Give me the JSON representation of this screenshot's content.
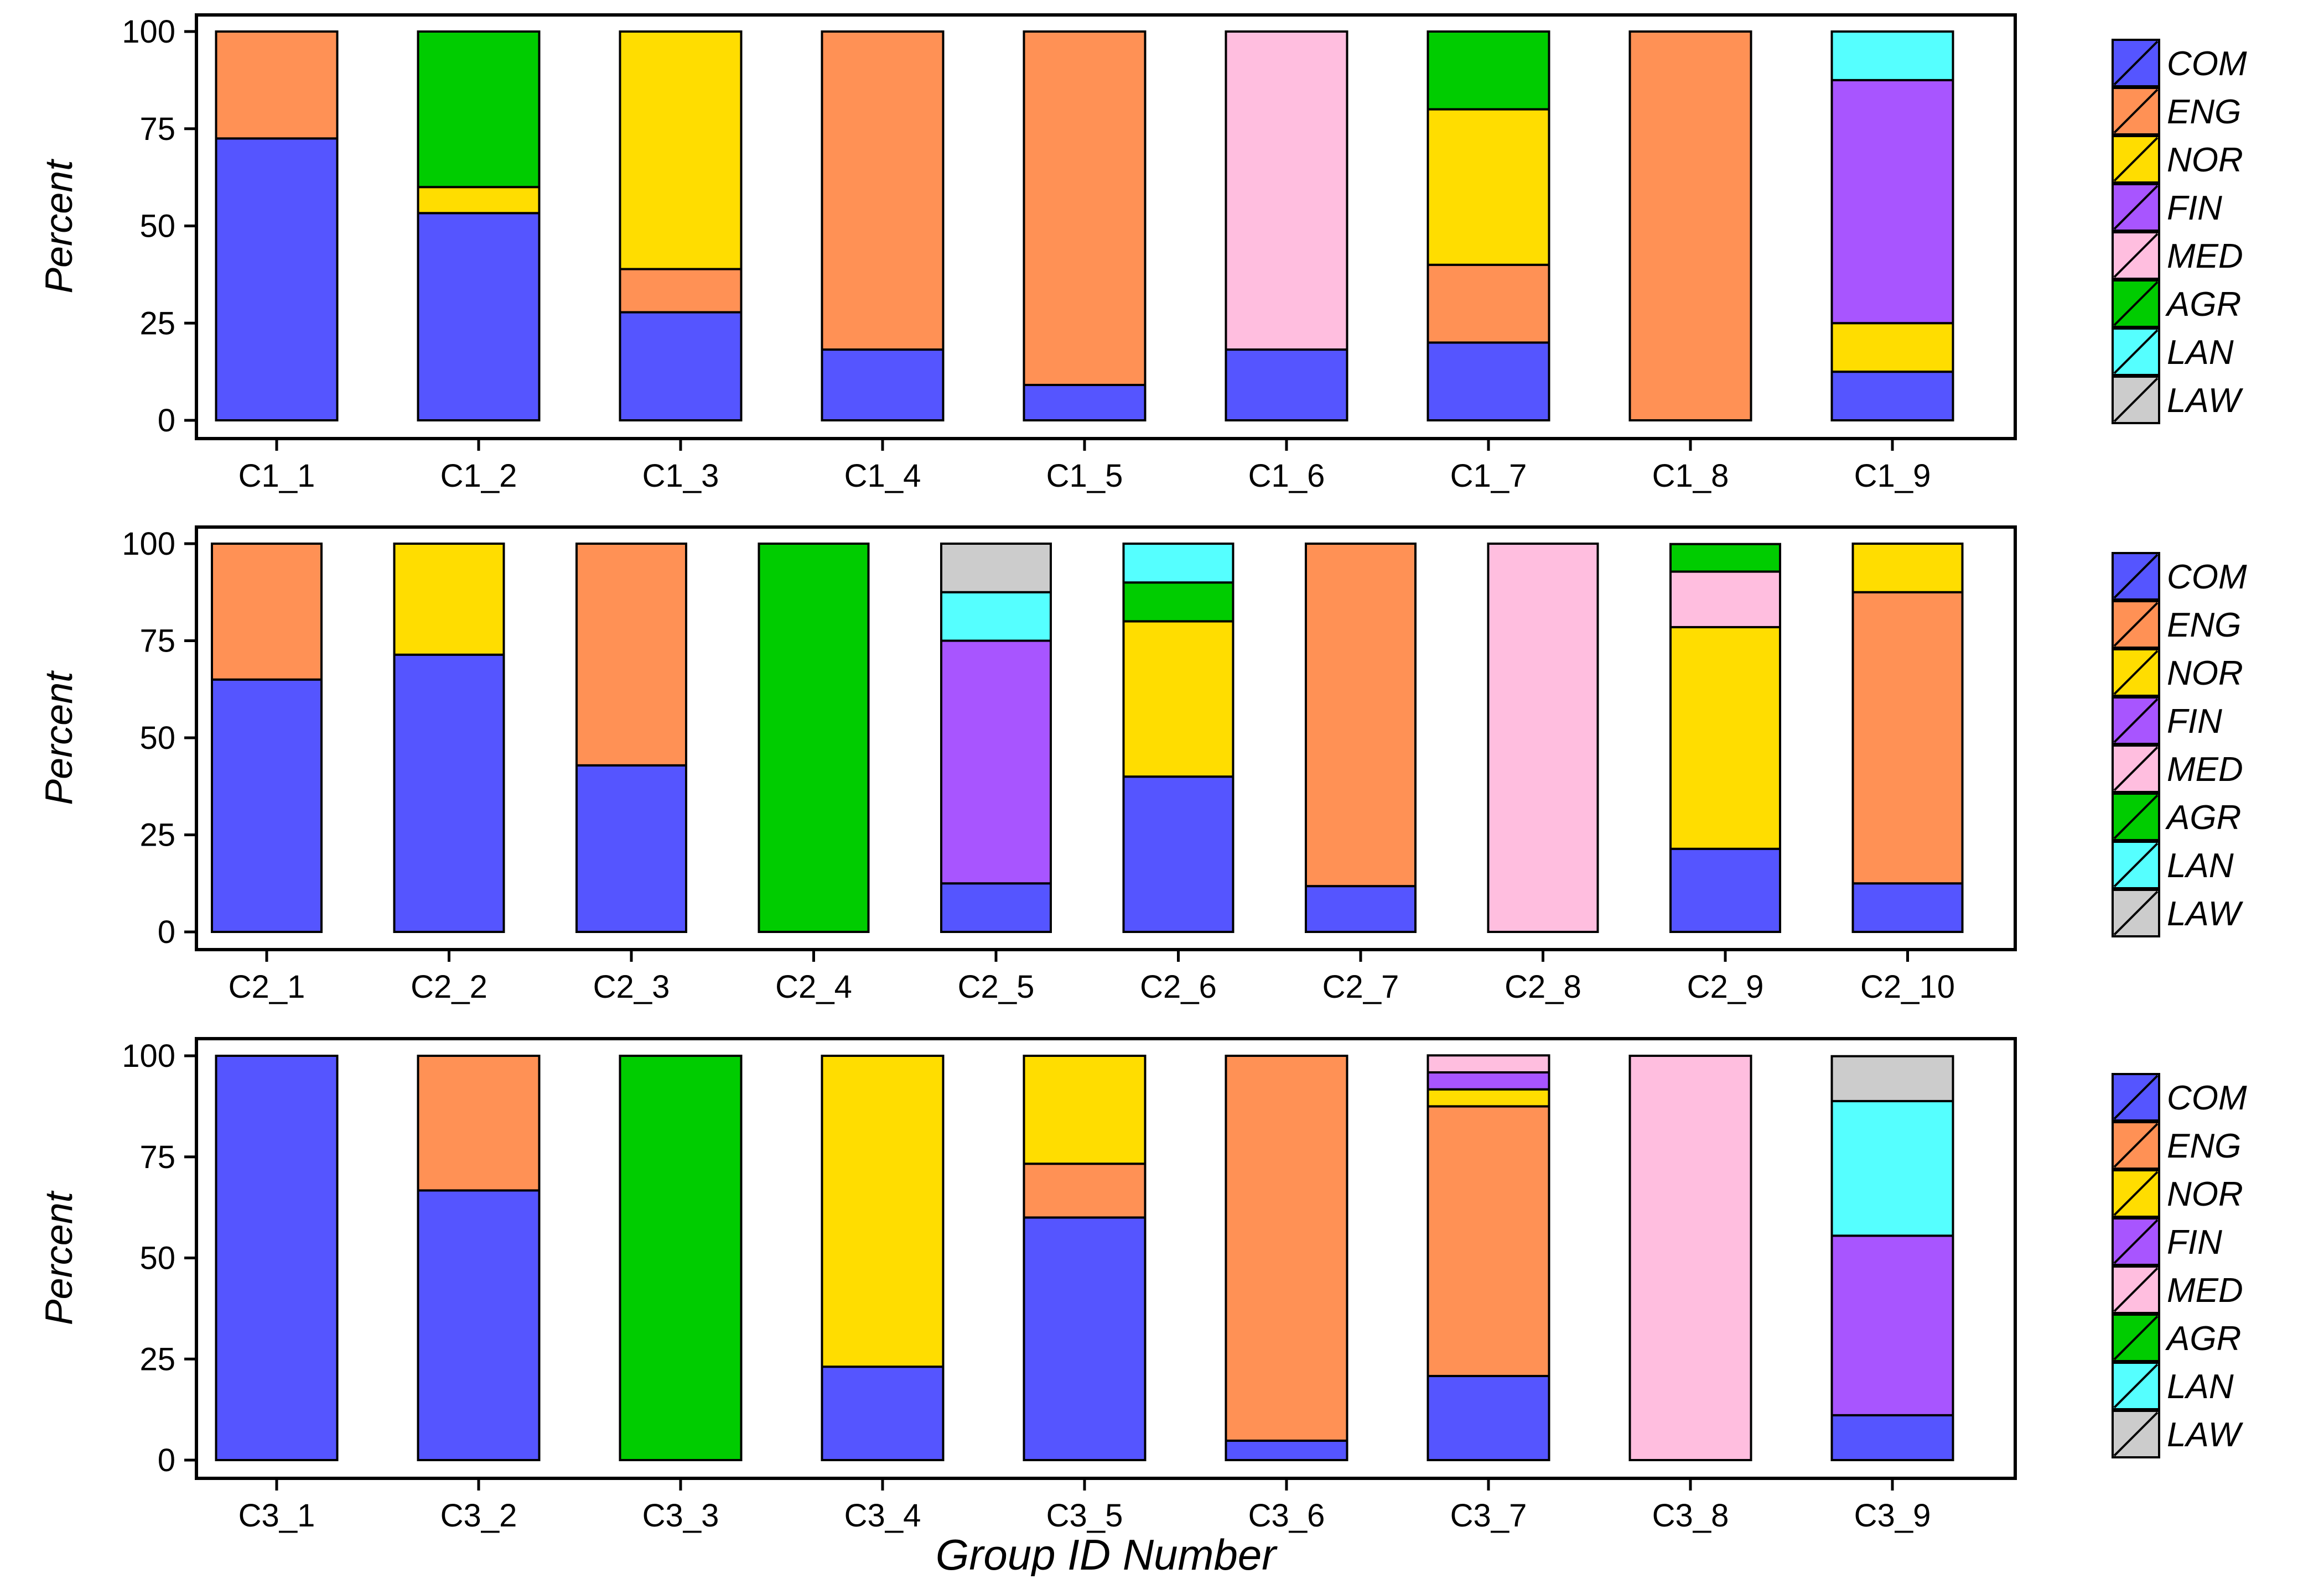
{
  "colors": {
    "COM": "#5555ff",
    "ENG": "#ff9155",
    "NOR": "#ffdd00",
    "FIN": "#a855ff",
    "MED": "#ffbedf",
    "AGR": "#00cc00",
    "LAN": "#55ffff",
    "LAW": "#cccccc"
  },
  "chart_data": [
    {
      "type": "bar",
      "stacked": true,
      "ylabel": "Percent",
      "ylim": [
        0,
        100
      ],
      "yticks": [
        0,
        25,
        50,
        75,
        100
      ],
      "legend_placement": "right",
      "legend": [
        "COM",
        "ENG",
        "NOR",
        "FIN",
        "MED",
        "AGR",
        "LAN",
        "LAW"
      ],
      "categories": [
        "C1_1",
        "C1_2",
        "C1_3",
        "C1_4",
        "C1_5",
        "C1_6",
        "C1_7",
        "C1_8",
        "C1_9"
      ],
      "series": [
        {
          "name": "COM",
          "values": [
            72.5,
            53.3,
            27.8,
            18.2,
            9.1,
            18.2,
            20,
            0,
            12.5
          ]
        },
        {
          "name": "ENG",
          "values": [
            27.5,
            0,
            11.1,
            81.8,
            90.9,
            0,
            20,
            100,
            0
          ]
        },
        {
          "name": "NOR",
          "values": [
            0,
            6.7,
            61.1,
            0,
            0,
            0,
            40,
            0,
            12.5
          ]
        },
        {
          "name": "FIN",
          "values": [
            0,
            0,
            0,
            0,
            0,
            0,
            0,
            0,
            62.5
          ]
        },
        {
          "name": "MED",
          "values": [
            0,
            0,
            0,
            0,
            0,
            81.8,
            0,
            0,
            0
          ]
        },
        {
          "name": "AGR",
          "values": [
            0,
            40,
            0,
            0,
            0,
            0,
            20,
            0,
            0
          ]
        },
        {
          "name": "LAN",
          "values": [
            0,
            0,
            0,
            0,
            0,
            0,
            0,
            0,
            12.5
          ]
        },
        {
          "name": "LAW",
          "values": [
            0,
            0,
            0,
            0,
            0,
            0,
            0,
            0,
            0
          ]
        }
      ]
    },
    {
      "type": "bar",
      "stacked": true,
      "ylabel": "Percent",
      "ylim": [
        0,
        100
      ],
      "yticks": [
        0,
        25,
        50,
        75,
        100
      ],
      "legend_placement": "right",
      "legend": [
        "COM",
        "ENG",
        "NOR",
        "FIN",
        "MED",
        "AGR",
        "LAN",
        "LAW"
      ],
      "categories": [
        "C2_1",
        "C2_2",
        "C2_3",
        "C2_4",
        "C2_5",
        "C2_6",
        "C2_7",
        "C2_8",
        "C2_9",
        "C2_10"
      ],
      "series": [
        {
          "name": "COM",
          "values": [
            65,
            71.4,
            42.9,
            0,
            12.5,
            40,
            11.8,
            0,
            21.4,
            12.5
          ]
        },
        {
          "name": "ENG",
          "values": [
            35,
            0,
            57.1,
            0,
            0,
            0,
            88.2,
            0,
            0,
            75
          ]
        },
        {
          "name": "NOR",
          "values": [
            0,
            28.6,
            0,
            0,
            0,
            40,
            0,
            0,
            57.1,
            12.5
          ]
        },
        {
          "name": "FIN",
          "values": [
            0,
            0,
            0,
            0,
            62.5,
            0,
            0,
            0,
            0,
            0
          ]
        },
        {
          "name": "MED",
          "values": [
            0,
            0,
            0,
            0,
            0,
            0,
            0,
            100,
            14.3,
            0
          ]
        },
        {
          "name": "AGR",
          "values": [
            0,
            0,
            0,
            100,
            0,
            10,
            0,
            0,
            7.1,
            0
          ]
        },
        {
          "name": "LAN",
          "values": [
            0,
            0,
            0,
            0,
            12.5,
            10,
            0,
            0,
            0,
            0
          ]
        },
        {
          "name": "LAW",
          "values": [
            0,
            0,
            0,
            0,
            12.5,
            0,
            0,
            0,
            0,
            0
          ]
        }
      ]
    },
    {
      "type": "bar",
      "stacked": true,
      "ylabel": "Percent",
      "xlabel": "Group ID Number",
      "ylim": [
        0,
        100
      ],
      "yticks": [
        0,
        25,
        50,
        75,
        100
      ],
      "legend_placement": "right",
      "legend": [
        "COM",
        "ENG",
        "NOR",
        "FIN",
        "MED",
        "AGR",
        "LAN",
        "LAW"
      ],
      "categories": [
        "C3_1",
        "C3_2",
        "C3_3",
        "C3_4",
        "C3_5",
        "C3_6",
        "C3_7",
        "C3_8",
        "C3_9"
      ],
      "series": [
        {
          "name": "COM",
          "values": [
            100,
            66.7,
            0,
            23.1,
            60,
            4.8,
            20.8,
            0,
            11.1
          ]
        },
        {
          "name": "ENG",
          "values": [
            0,
            33.3,
            0,
            0,
            13.3,
            95.2,
            66.7,
            0,
            0
          ]
        },
        {
          "name": "NOR",
          "values": [
            0,
            0,
            0,
            76.9,
            26.7,
            0,
            4.2,
            0,
            0
          ]
        },
        {
          "name": "FIN",
          "values": [
            0,
            0,
            0,
            0,
            0,
            0,
            4.2,
            0,
            44.4
          ]
        },
        {
          "name": "MED",
          "values": [
            0,
            0,
            0,
            0,
            0,
            0,
            4.2,
            100,
            0
          ]
        },
        {
          "name": "AGR",
          "values": [
            0,
            0,
            100,
            0,
            0,
            0,
            0,
            0,
            0
          ]
        },
        {
          "name": "LAN",
          "values": [
            0,
            0,
            0,
            0,
            0,
            0,
            0,
            0,
            33.3
          ]
        },
        {
          "name": "LAW",
          "values": [
            0,
            0,
            0,
            0,
            0,
            0,
            0,
            0,
            11.1
          ]
        }
      ]
    }
  ]
}
